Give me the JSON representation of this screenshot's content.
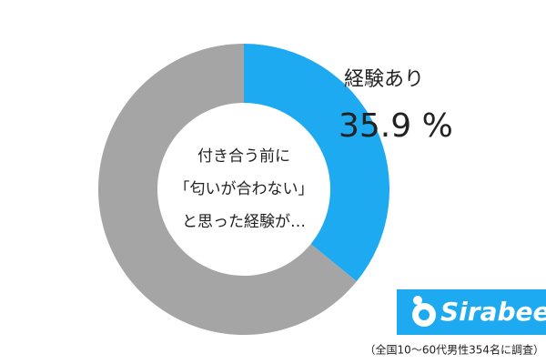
{
  "chart_data": {
    "type": "donut",
    "categories": [
      "経験あり",
      null
    ],
    "values": [
      35.9,
      64.1
    ],
    "value_labels": [
      "35.9 %",
      null
    ],
    "colors": [
      "#1eaaf0",
      "#a5a5a5"
    ],
    "center_text": [
      "付き合う前に",
      "「匂いが合わない」",
      "と思った経験が…"
    ]
  },
  "logo": "Sirabee",
  "footnote": "（全国10〜60代男性354名に調査）"
}
